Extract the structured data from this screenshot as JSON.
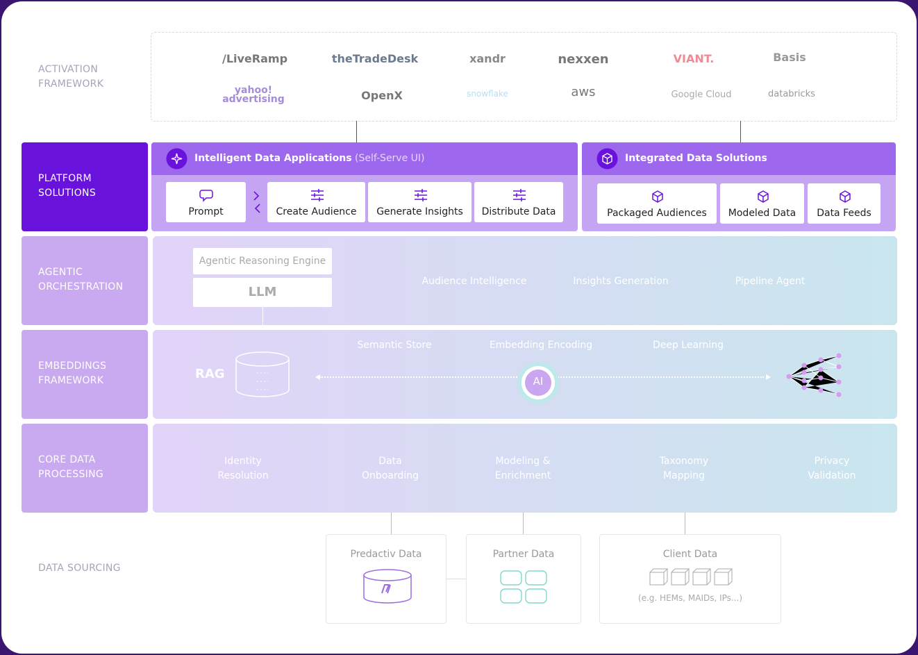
{
  "layers": {
    "activation": {
      "label": "ACTIVATION FRAMEWORK",
      "partners": [
        "/LiveRamp",
        "theTradeDesk",
        "xandr",
        "nexxen",
        "VIANT.",
        "Basis",
        "yahoo! advertising",
        "OpenX",
        "snowflake",
        "aws",
        "Google Cloud",
        "databricks"
      ]
    },
    "platform": {
      "label": "PLATFORM SOLUTIONS",
      "applications": {
        "title": "Intelligent Data Applications",
        "subtitle": "(Self-Serve UI)",
        "items": [
          "Prompt",
          "Create Audience",
          "Generate Insights",
          "Distribute Data"
        ]
      },
      "integrated": {
        "title": "Integrated Data Solutions",
        "items": [
          "Packaged Audiences",
          "Modeled Data",
          "Data Feeds"
        ]
      }
    },
    "agentic": {
      "label": "AGENTIC ORCHESTRATION",
      "engine": "Agentic Reasoning Engine",
      "llm": "LLM",
      "agents": [
        "Audience Intelligence",
        "Insights Generation",
        "Pipeline Agent"
      ]
    },
    "embeddings": {
      "label": "EMBEDDINGS FRAMEWORK",
      "rag": "RAG",
      "ai": "AI",
      "stages": [
        "Semantic Store",
        "Embedding Encoding",
        "Deep Learning"
      ]
    },
    "core": {
      "label": "CORE DATA PROCESSING",
      "steps": [
        "Identity Resolution",
        "Data Onboarding",
        "Modeling & Enrichment",
        "Taxonomy Mapping",
        "Privacy Validation"
      ]
    },
    "sourcing": {
      "label": "DATA SOURCING",
      "sources": [
        {
          "title": "Predactiv Data"
        },
        {
          "title": "Partner Data"
        },
        {
          "title": "Client Data",
          "note": "(e.g. HEMs, MAIDs, IPs...)"
        }
      ]
    }
  }
}
